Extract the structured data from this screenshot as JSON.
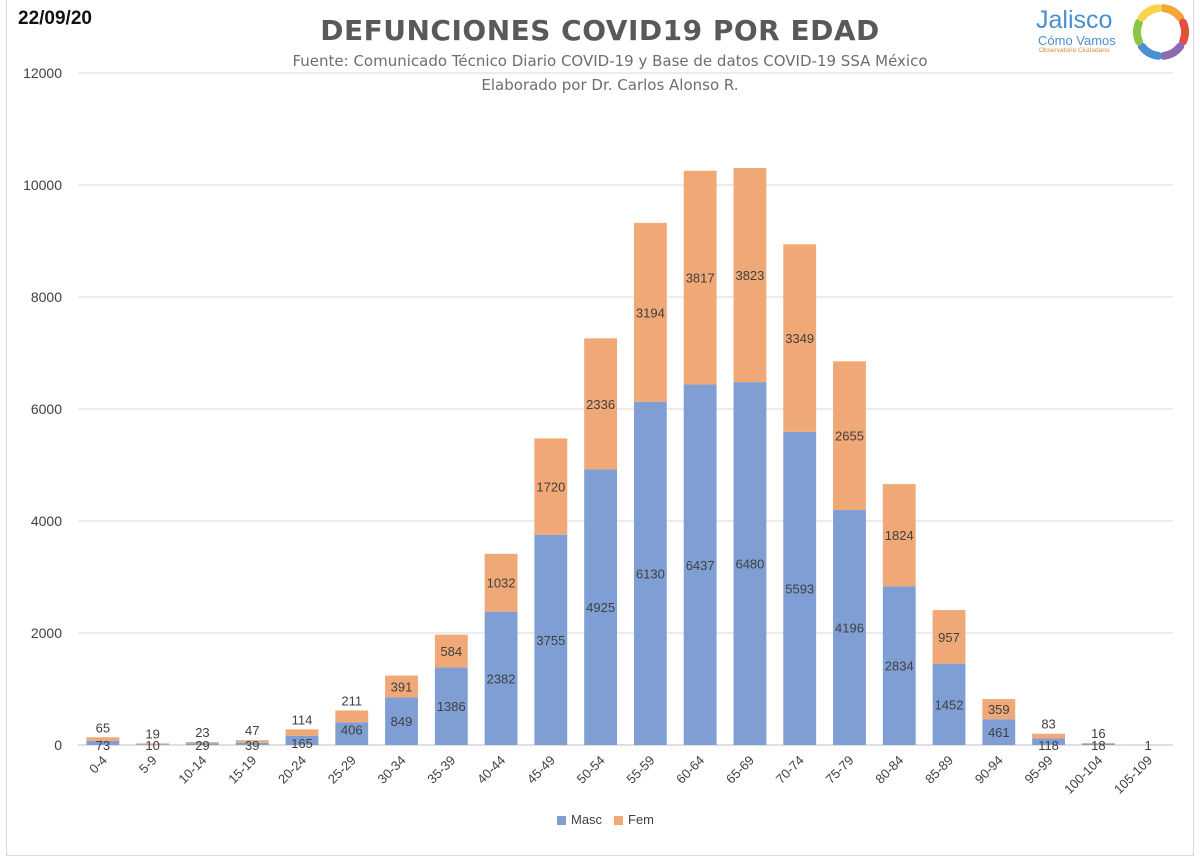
{
  "header": {
    "date": "22/09/20",
    "title": "DEFUNCIONES COVID19 POR EDAD",
    "subtitle1": "Fuente: Comunicado Técnico Diario COVID-19 y Base de datos COVID-19 SSA México",
    "subtitle2": "Elaborado por Dr. Carlos Alonso R."
  },
  "logo": {
    "name": "Jalisco",
    "sub": "Cómo Vamos",
    "tagline": "Observatorio Ciudadano",
    "colors": [
      "#f2a63a",
      "#e2513f",
      "#8c6bb1",
      "#4a8fd0",
      "#8ec447",
      "#f7d34a"
    ]
  },
  "chart_data": {
    "type": "bar",
    "stacked": true,
    "categories": [
      "0-4",
      "5-9",
      "10-14",
      "15-19",
      "20-24",
      "25-29",
      "30-34",
      "35-39",
      "40-44",
      "45-49",
      "50-54",
      "55-59",
      "60-64",
      "65-69",
      "70-74",
      "75-79",
      "80-84",
      "85-89",
      "90-94",
      "95-99",
      "100-104",
      "105-109"
    ],
    "series": [
      {
        "name": "Masc",
        "color": "#7f9fd4",
        "values": [
          73,
          10,
          29,
          39,
          165,
          406,
          849,
          1386,
          2382,
          3755,
          4925,
          6130,
          6437,
          6480,
          5593,
          4196,
          2834,
          1452,
          461,
          118,
          18,
          1
        ]
      },
      {
        "name": "Fem",
        "color": "#f0a876",
        "values": [
          65,
          19,
          23,
          47,
          114,
          211,
          391,
          584,
          1032,
          1720,
          2336,
          3194,
          3817,
          3823,
          3349,
          2655,
          1824,
          957,
          359,
          83,
          16,
          0
        ]
      }
    ],
    "ylim": [
      0,
      12000
    ],
    "yticks": [
      0,
      2000,
      4000,
      6000,
      8000,
      10000,
      12000
    ],
    "grid": true,
    "legend": "bottom"
  }
}
